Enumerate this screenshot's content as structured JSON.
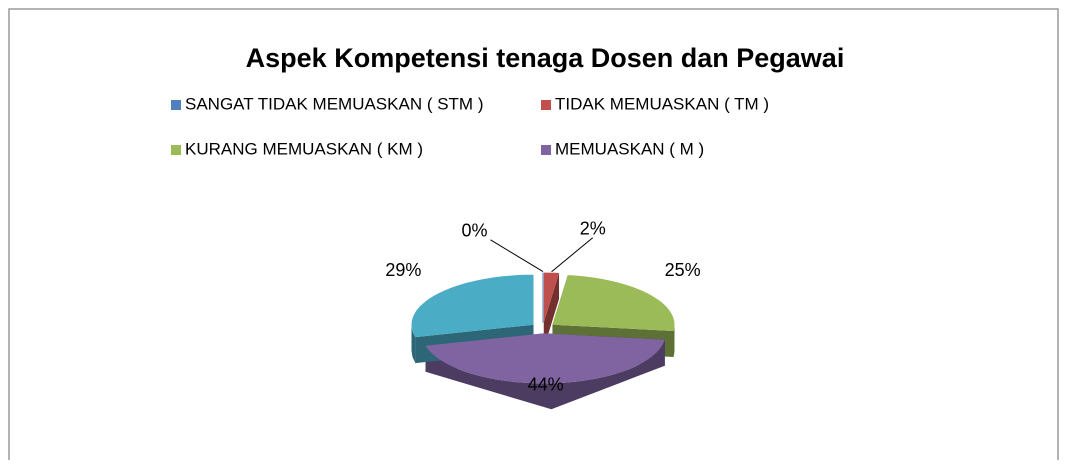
{
  "chart_data": {
    "type": "pie3d",
    "title": "Aspek Kompetensi tenaga Dosen dan Pegawai",
    "categories": [
      "SANGAT TIDAK MEMUASKAN ( STM )",
      "TIDAK MEMUASKAN ( TM )",
      "KURANG MEMUASKAN ( KM )",
      "MEMUASKAN ( M )",
      null
    ],
    "values": [
      0,
      2,
      25,
      44,
      29
    ],
    "value_labels": [
      "0%",
      "2%",
      "25%",
      "44%",
      "29%"
    ],
    "colors": [
      "#4f81bd",
      "#c0504d",
      "#9bbb59",
      "#8064a2",
      "#4bacc6"
    ],
    "legend": "top"
  }
}
